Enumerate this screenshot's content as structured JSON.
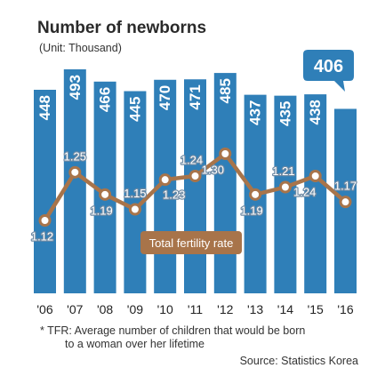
{
  "title": "Number of newborns",
  "subtitle": "(Unit: Thousand)",
  "colors": {
    "bar": "#2f7fb8",
    "line": "#a8744a",
    "callout": "#2f7fb8",
    "legend": "#a8744a"
  },
  "chart_data": {
    "type": "bar",
    "categories": [
      "'06",
      "'07",
      "'08",
      "'09",
      "'10",
      "'11",
      "'12",
      "'13",
      "'14",
      "'15",
      "'16"
    ],
    "series": [
      {
        "values": [
          448,
          493,
          466,
          445,
          470,
          471,
          485,
          437,
          435,
          438,
          406
        ],
        "labels": [
          "448",
          "493",
          "466",
          "445",
          "470",
          "471",
          "485",
          "437",
          "435",
          "438",
          ""
        ]
      },
      {
        "name": "Total fertility rate",
        "type": "line",
        "values": [
          1.12,
          1.25,
          1.19,
          1.15,
          1.23,
          1.24,
          1.3,
          1.19,
          1.21,
          1.24,
          1.17
        ],
        "labels": [
          "1.12",
          "1.25",
          "1.19",
          "1.15",
          "1.23",
          "1.24",
          "1.30",
          "1.19",
          "1.21",
          "1.24",
          "1.17"
        ]
      }
    ],
    "callout": "406"
  },
  "footnote": {
    "line1": "* TFR: Average number of children that would be born",
    "line2": "to a woman over her lifetime"
  },
  "source": "Source:  Statistics Korea"
}
